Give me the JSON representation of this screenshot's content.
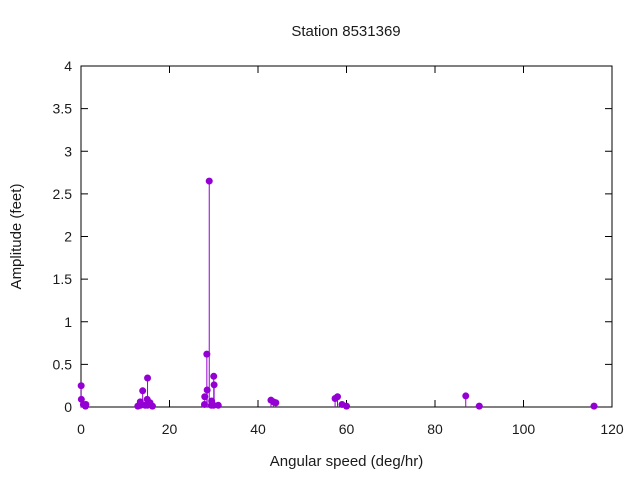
{
  "figure": {
    "background": "#ffffff",
    "frame_color": "#000000",
    "text_color": "#1a1a1a"
  },
  "chart_data": {
    "type": "scatter",
    "style": "impulses+points",
    "title": "Station 8531369",
    "xlabel": "Angular speed (deg/hr)",
    "ylabel": "Amplitude (feet)",
    "xlim": [
      0,
      120
    ],
    "ylim": [
      0,
      4
    ],
    "xticks": [
      0,
      20,
      40,
      60,
      80,
      100,
      120
    ],
    "xtick_labels": [
      "0",
      "20",
      "40",
      "60",
      "80",
      "100",
      "120"
    ],
    "yticks": [
      0,
      0.5,
      1,
      1.5,
      2,
      2.5,
      3,
      3.5,
      4
    ],
    "ytick_labels": [
      "0",
      "0.5",
      "1",
      "1.5",
      "2",
      "2.5",
      "3",
      "3.5",
      "4"
    ],
    "grid": false,
    "legend": "none",
    "point_color": "#9400d3",
    "point_radius": 3.5,
    "points": [
      [
        0.04,
        0.25
      ],
      [
        0.08,
        0.09
      ],
      [
        0.54,
        0.03
      ],
      [
        1.02,
        0.01
      ],
      [
        1.1,
        0.03
      ],
      [
        12.85,
        0.01
      ],
      [
        13.4,
        0.06
      ],
      [
        13.47,
        0.02
      ],
      [
        13.94,
        0.19
      ],
      [
        14.5,
        0.02
      ],
      [
        14.96,
        0.09
      ],
      [
        15.0,
        0.02
      ],
      [
        15.04,
        0.34
      ],
      [
        15.59,
        0.05
      ],
      [
        16.14,
        0.01
      ],
      [
        27.9,
        0.03
      ],
      [
        27.97,
        0.12
      ],
      [
        28.44,
        0.62
      ],
      [
        28.51,
        0.2
      ],
      [
        28.98,
        2.65
      ],
      [
        29.46,
        0.02
      ],
      [
        29.53,
        0.07
      ],
      [
        29.96,
        0.02
      ],
      [
        30.0,
        0.36
      ],
      [
        30.08,
        0.26
      ],
      [
        31.02,
        0.02
      ],
      [
        42.93,
        0.08
      ],
      [
        43.48,
        0.06
      ],
      [
        44.03,
        0.05
      ],
      [
        57.42,
        0.1
      ],
      [
        57.97,
        0.12
      ],
      [
        58.98,
        0.03
      ],
      [
        60.0,
        0.01
      ],
      [
        86.95,
        0.13
      ],
      [
        90.0,
        0.01
      ],
      [
        115.94,
        0.01
      ]
    ]
  }
}
